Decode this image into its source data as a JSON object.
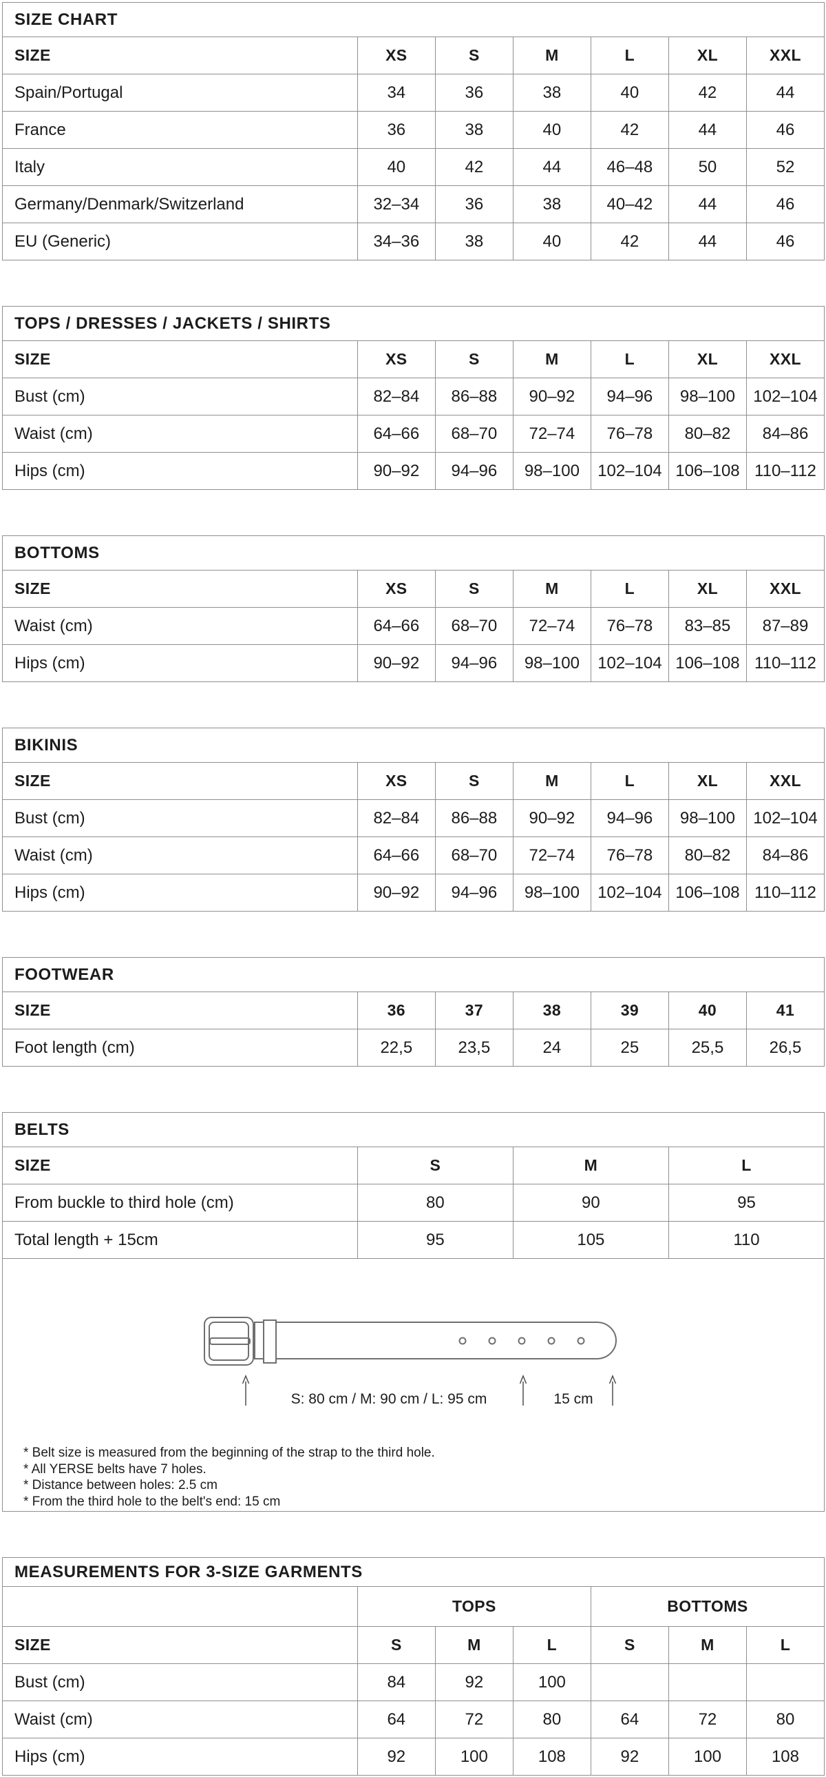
{
  "colors": {
    "border": "#8f8f8f",
    "text": "#1c1c1c",
    "belt_outline": "#6f6f6f",
    "arrow": "#4d4d4d",
    "background": "#ffffff"
  },
  "section_order": [
    "size_chart",
    "tops",
    "bottoms",
    "bikinis",
    "footwear",
    "belts",
    "measurements_3size"
  ],
  "size_chart": {
    "title": "SIZE CHART",
    "columns": [
      "SIZE",
      "XS",
      "S",
      "M",
      "L",
      "XL",
      "XXL"
    ],
    "rows": [
      [
        "Spain/Portugal",
        "34",
        "36",
        "38",
        "40",
        "42",
        "44"
      ],
      [
        "France",
        "36",
        "38",
        "40",
        "42",
        "44",
        "46"
      ],
      [
        "Italy",
        "40",
        "42",
        "44",
        "46–48",
        "50",
        "52"
      ],
      [
        "Germany/Denmark/Switzerland",
        "32–34",
        "36",
        "38",
        "40–42",
        "44",
        "46"
      ],
      [
        "EU (Generic)",
        "34–36",
        "38",
        "40",
        "42",
        "44",
        "46"
      ]
    ]
  },
  "tops": {
    "title": "TOPS / DRESSES / JACKETS / SHIRTS",
    "columns": [
      "SIZE",
      "XS",
      "S",
      "M",
      "L",
      "XL",
      "XXL"
    ],
    "rows": [
      [
        "Bust (cm)",
        "82–84",
        "86–88",
        "90–92",
        "94–96",
        "98–100",
        "102–104"
      ],
      [
        "Waist (cm)",
        "64–66",
        "68–70",
        "72–74",
        "76–78",
        "80–82",
        "84–86"
      ],
      [
        "Hips (cm)",
        "90–92",
        "94–96",
        "98–100",
        "102–104",
        "106–108",
        "110–112"
      ]
    ]
  },
  "bottoms": {
    "title": "BOTTOMS",
    "columns": [
      "SIZE",
      "XS",
      "S",
      "M",
      "L",
      "XL",
      "XXL"
    ],
    "rows": [
      [
        "Waist (cm)",
        "64–66",
        "68–70",
        "72–74",
        "76–78",
        "83–85",
        "87–89"
      ],
      [
        "Hips (cm)",
        "90–92",
        "94–96",
        "98–100",
        "102–104",
        "106–108",
        "110–112"
      ]
    ]
  },
  "bikinis": {
    "title": "BIKINIS",
    "columns": [
      "SIZE",
      "XS",
      "S",
      "M",
      "L",
      "XL",
      "XXL"
    ],
    "rows": [
      [
        "Bust (cm)",
        "82–84",
        "86–88",
        "90–92",
        "94–96",
        "98–100",
        "102–104"
      ],
      [
        "Waist (cm)",
        "64–66",
        "68–70",
        "72–74",
        "76–78",
        "80–82",
        "84–86"
      ],
      [
        "Hips (cm)",
        "90–92",
        "94–96",
        "98–100",
        "102–104",
        "106–108",
        "110–112"
      ]
    ]
  },
  "footwear": {
    "title": "FOOTWEAR",
    "columns": [
      "SIZE",
      "36",
      "37",
      "38",
      "39",
      "40",
      "41"
    ],
    "rows": [
      [
        "Foot length (cm)",
        "22,5",
        "23,5",
        "24",
        "25",
        "25,5",
        "26,5"
      ]
    ]
  },
  "belts": {
    "title": "BELTS",
    "columns": [
      "SIZE",
      "S",
      "M",
      "L"
    ],
    "rows": [
      [
        "From buckle to third hole (cm)",
        "80",
        "90",
        "95"
      ],
      [
        "Total length + 15cm",
        "95",
        "105",
        "110"
      ]
    ],
    "diagram": {
      "size_label": "S: 80 cm / M: 90 cm / L: 95 cm",
      "interval_label": "15 cm",
      "notes": [
        "* Belt size is measured from the beginning of the strap to the third hole.",
        "* All YERSE belts have 7 holes.",
        "* Distance between holes: 2.5 cm",
        "* From the third hole to the belt's end: 15 cm"
      ]
    }
  },
  "measurements_3size": {
    "title": "MEASUREMENTS FOR 3-SIZE GARMENTS",
    "group_row": [
      {
        "label": "",
        "span": 1
      },
      {
        "label": "TOPS",
        "span": 3
      },
      {
        "label": "BOTTOMS",
        "span": 3
      }
    ],
    "columns": [
      "SIZE",
      "S",
      "M",
      "L",
      "S",
      "M",
      "L"
    ],
    "rows": [
      [
        "Bust (cm)",
        "84",
        "92",
        "100",
        "",
        "",
        ""
      ],
      [
        "Waist (cm)",
        "64",
        "72",
        "80",
        "64",
        "72",
        "80"
      ],
      [
        "Hips (cm)",
        "92",
        "100",
        "108",
        "92",
        "100",
        "108"
      ]
    ]
  }
}
